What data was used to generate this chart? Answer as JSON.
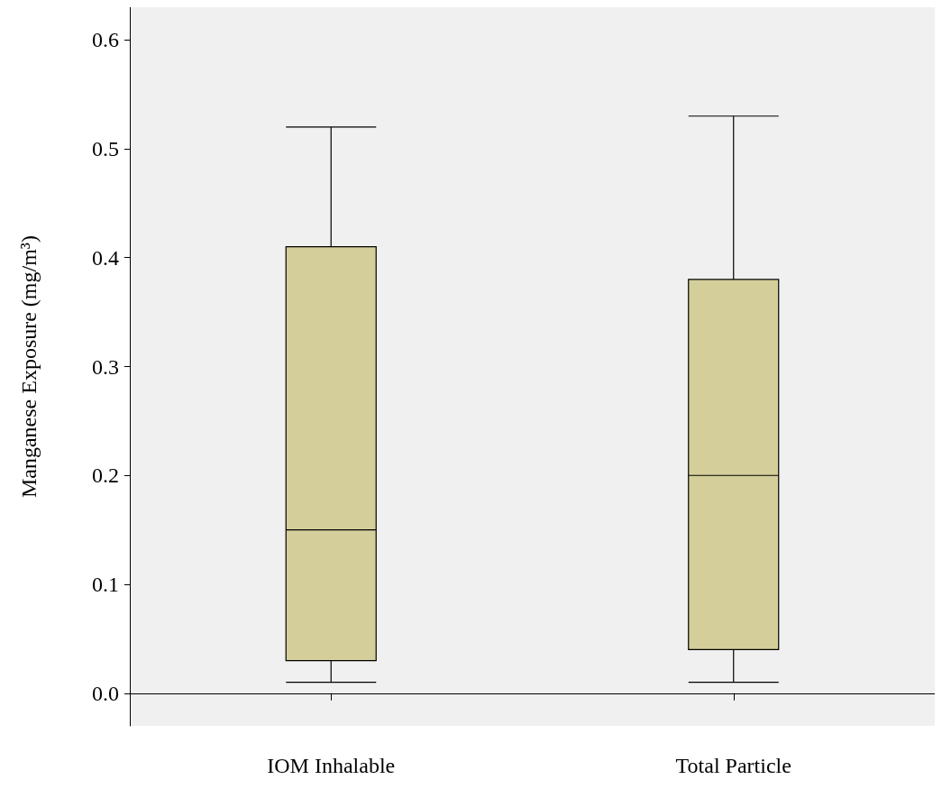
{
  "chart_data": {
    "type": "box",
    "ylabel": "Manganese Exposure (mg/m³)",
    "categories": [
      "IOM Inhalable",
      "Total Particle"
    ],
    "series": [
      {
        "color": "#d4cf9a",
        "boxes": [
          {
            "low": 0.01,
            "q1": 0.03,
            "median": 0.15,
            "q3": 0.41,
            "high": 0.52
          },
          {
            "low": 0.01,
            "q1": 0.04,
            "median": 0.2,
            "q3": 0.38,
            "high": 0.53
          }
        ]
      }
    ],
    "ylim": [
      -0.03,
      0.63
    ],
    "yticks": [
      {
        "value": 0,
        "label": "0.0"
      },
      {
        "value": 0.1,
        "label": "0.1"
      },
      {
        "value": 0.2,
        "label": "0.2"
      },
      {
        "value": 0.3,
        "label": "0.3"
      },
      {
        "value": 0.4,
        "label": "0.4"
      },
      {
        "value": 0.5,
        "label": "0.5"
      },
      {
        "value": 0.6,
        "label": "0.6"
      }
    ]
  }
}
